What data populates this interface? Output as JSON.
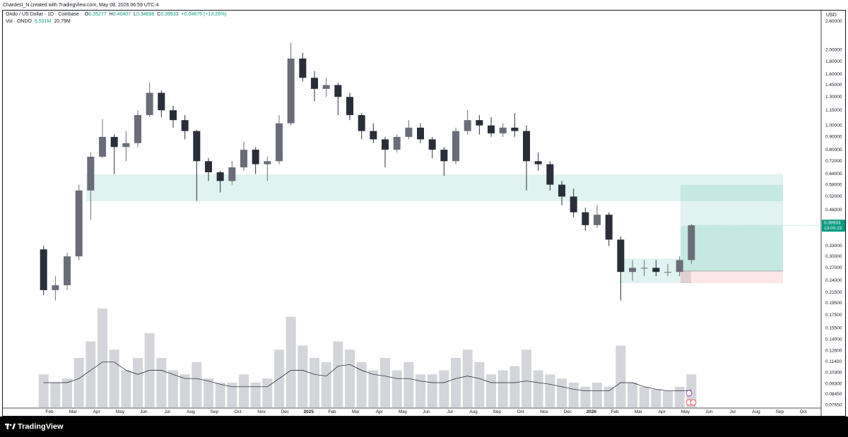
{
  "header": {
    "attribution": "Chardest_N created with TradingView.com, May 08, 2026 06:59 UTC-4"
  },
  "chart_data": {
    "type": "candlestick",
    "title": "Ondo / US Dollar · 1D · Coinbase",
    "quote": [
      {
        "prefix": "O",
        "value": 0.35277
      },
      {
        "prefix": "H",
        "value": 0.40407
      },
      {
        "prefix": "L",
        "value": 0.34698
      },
      {
        "prefix": "C",
        "value": 0.39933
      }
    ],
    "change": {
      "value": 0.04675,
      "label": "+0.04675"
    },
    "change_pct": {
      "value": 13.26,
      "label": "(+13.26%)"
    },
    "volume_legend": {
      "name": "Vol · ONDO",
      "values": [
        {
          "value": 6531000,
          "label": "6.531M"
        },
        {
          "value": 20790000,
          "label": "20.79M"
        }
      ]
    },
    "currency": "USD",
    "countdown": "13:00:23",
    "categories": [
      null,
      null,
      "Feb",
      null,
      "Mar",
      null,
      "Apr",
      null,
      "May",
      null,
      "Jun",
      null,
      "Jul",
      null,
      "Aug",
      null,
      "Sep",
      null,
      "Oct",
      null,
      "Nov",
      null,
      "Dec",
      null,
      "2025",
      null,
      "Feb",
      null,
      "Mar",
      null,
      "Apr",
      null,
      "May",
      null,
      "Jun",
      null,
      "Jul",
      null,
      "Aug",
      null,
      "Sep",
      null,
      "Oct",
      null,
      "Nov",
      null,
      "Dec",
      null,
      "2026",
      null,
      "Feb",
      null,
      "Mar",
      null,
      "Apr",
      null,
      "May",
      null,
      "Jun",
      null,
      "Jul",
      null,
      "Aug",
      null,
      "Sep",
      null,
      "Oct"
    ],
    "open": [
      null,
      0.32,
      0.22,
      0.23,
      0.3,
      0.55,
      0.75,
      0.9,
      0.82,
      0.85,
      1.1,
      1.35,
      1.15,
      1.05,
      0.95,
      0.72,
      0.65,
      0.6,
      0.68,
      0.8,
      0.7,
      0.72,
      1.02,
      1.85,
      1.55,
      1.4,
      1.45,
      1.3,
      1.1,
      0.95,
      0.88,
      0.8,
      0.9,
      0.98,
      0.88,
      0.8,
      0.72,
      0.95,
      1.05,
      1.0,
      0.93,
      0.98,
      0.95,
      0.72,
      0.7,
      0.58,
      0.52,
      0.45,
      0.4,
      0.44,
      0.35,
      0.26,
      0.27,
      0.27,
      0.26,
      0.26,
      0.29,
      null,
      null,
      null,
      null,
      null,
      null,
      null,
      null,
      null,
      null
    ],
    "high": [
      null,
      0.33,
      0.25,
      0.31,
      0.58,
      0.78,
      1.06,
      0.92,
      0.95,
      1.15,
      1.48,
      1.38,
      1.2,
      1.1,
      0.96,
      0.74,
      0.66,
      0.72,
      0.86,
      0.82,
      0.75,
      1.1,
      2.14,
      1.95,
      1.65,
      1.55,
      1.48,
      1.35,
      1.12,
      1.02,
      0.9,
      0.92,
      1.05,
      1.02,
      0.9,
      0.82,
      0.98,
      1.15,
      1.1,
      1.08,
      1.02,
      1.12,
      1.0,
      0.78,
      0.72,
      0.6,
      0.56,
      0.47,
      0.48,
      0.45,
      0.36,
      0.29,
      0.29,
      0.29,
      0.28,
      0.3,
      0.40407,
      null,
      null,
      null,
      null,
      null,
      null,
      null,
      null,
      null,
      null
    ],
    "low": [
      null,
      0.21,
      0.2,
      0.22,
      0.29,
      0.42,
      0.74,
      0.64,
      0.72,
      0.82,
      1.08,
      1.08,
      0.98,
      0.88,
      0.5,
      0.6,
      0.54,
      0.58,
      0.66,
      0.64,
      0.6,
      0.7,
      1.0,
      1.5,
      1.25,
      1.3,
      1.1,
      1.05,
      0.88,
      0.85,
      0.68,
      0.78,
      0.88,
      0.85,
      0.74,
      0.63,
      0.7,
      0.92,
      0.92,
      0.9,
      0.9,
      0.9,
      0.55,
      0.66,
      0.55,
      0.48,
      0.43,
      0.38,
      0.39,
      0.33,
      0.2,
      0.24,
      0.25,
      0.25,
      0.25,
      0.25,
      0.28,
      null,
      null,
      null,
      null,
      null,
      null,
      null,
      null,
      null,
      null
    ],
    "close": [
      null,
      0.22,
      0.23,
      0.3,
      0.55,
      0.75,
      0.9,
      0.82,
      0.85,
      1.1,
      1.35,
      1.15,
      1.05,
      0.95,
      0.72,
      0.65,
      0.6,
      0.68,
      0.8,
      0.7,
      0.72,
      1.02,
      1.85,
      1.55,
      1.4,
      1.45,
      1.3,
      1.1,
      0.95,
      0.88,
      0.8,
      0.9,
      0.98,
      0.88,
      0.8,
      0.72,
      0.95,
      1.05,
      1.0,
      0.93,
      0.98,
      0.95,
      0.72,
      0.7,
      0.58,
      0.52,
      0.45,
      0.4,
      0.44,
      0.35,
      0.26,
      0.27,
      0.27,
      0.26,
      0.26,
      0.29,
      0.39933,
      null,
      null,
      null,
      null,
      null,
      null,
      null,
      null,
      null,
      null
    ],
    "volume": [
      null,
      40000000,
      30000000,
      35000000,
      60000000,
      80000000,
      120000000,
      70000000,
      45000000,
      60000000,
      90000000,
      60000000,
      45000000,
      40000000,
      55000000,
      35000000,
      30000000,
      30000000,
      40000000,
      30000000,
      35000000,
      70000000,
      110000000,
      75000000,
      60000000,
      55000000,
      80000000,
      70000000,
      55000000,
      45000000,
      60000000,
      45000000,
      55000000,
      40000000,
      40000000,
      45000000,
      60000000,
      70000000,
      55000000,
      40000000,
      45000000,
      50000000,
      70000000,
      45000000,
      40000000,
      35000000,
      30000000,
      25000000,
      30000000,
      25000000,
      75000000,
      30000000,
      25000000,
      22000000,
      20000000,
      25000000,
      40000000,
      null,
      null,
      null,
      null,
      null,
      null,
      null,
      null,
      null,
      null
    ],
    "volume_ma": [
      null,
      30000000,
      30000000,
      30000000,
      35000000,
      45000000,
      55000000,
      55000000,
      45000000,
      40000000,
      45000000,
      45000000,
      40000000,
      35000000,
      35000000,
      32000000,
      28000000,
      25000000,
      25000000,
      25000000,
      25000000,
      35000000,
      45000000,
      45000000,
      40000000,
      38000000,
      50000000,
      52000000,
      45000000,
      40000000,
      38000000,
      35000000,
      35000000,
      32000000,
      30000000,
      30000000,
      35000000,
      38000000,
      35000000,
      30000000,
      30000000,
      30000000,
      32000000,
      30000000,
      28000000,
      25000000,
      22000000,
      20000000,
      20000000,
      20000000,
      30000000,
      30000000,
      25000000,
      22000000,
      20000000,
      20000000,
      20790000,
      null,
      null,
      null,
      null,
      null,
      null,
      null,
      null,
      null,
      null
    ],
    "log_scale": true,
    "grid": false,
    "ylim": [
      0.0734,
      2.82
    ],
    "yticks": [
      {
        "value": 2.6,
        "label": "2.60000"
      },
      {
        "value": 2.0,
        "label": "2.00000"
      },
      {
        "value": 1.8,
        "label": "1.80000"
      },
      {
        "value": 1.6,
        "label": "1.60000"
      },
      {
        "value": 1.45,
        "label": "1.45000"
      },
      {
        "value": 1.3,
        "label": "1.30000"
      },
      {
        "value": 1.15,
        "label": "1.15000"
      },
      {
        "value": 1.0,
        "label": "1.00000"
      },
      {
        "value": 0.9,
        "label": "0.90000"
      },
      {
        "value": 0.8,
        "label": "0.80000"
      },
      {
        "value": 0.72,
        "label": "0.72000"
      },
      {
        "value": 0.64,
        "label": "0.64000"
      },
      {
        "value": 0.58,
        "label": "0.58000"
      },
      {
        "value": 0.52,
        "label": "0.52000"
      },
      {
        "value": 0.46,
        "label": "0.46000"
      },
      {
        "value": 0.33,
        "label": "0.33000"
      },
      {
        "value": 0.3,
        "label": "0.30000"
      },
      {
        "value": 0.27,
        "label": "0.27000"
      },
      {
        "value": 0.24,
        "label": "0.24000"
      },
      {
        "value": 0.215,
        "label": "0.21500"
      },
      {
        "value": 0.195,
        "label": "0.19500"
      },
      {
        "value": 0.175,
        "label": "0.17500"
      },
      {
        "value": 0.155,
        "label": "0.15500"
      },
      {
        "value": 0.14,
        "label": "0.14000"
      },
      {
        "value": 0.126,
        "label": "0.12600"
      },
      {
        "value": 0.114,
        "label": "0.11400"
      },
      {
        "value": 0.103,
        "label": "0.10300"
      },
      {
        "value": 0.093,
        "label": "0.09300"
      },
      {
        "value": 0.0845,
        "label": "0.08450"
      },
      {
        "value": 0.0765,
        "label": "0.07650"
      }
    ],
    "up_color": "#6a6d78",
    "down_color": "#2a2e39",
    "volume_color": "#c9cbd1",
    "volume_ma_color": "#131722",
    "last_price_color": "#089981"
  },
  "footer": {
    "brand": "TradingView"
  }
}
